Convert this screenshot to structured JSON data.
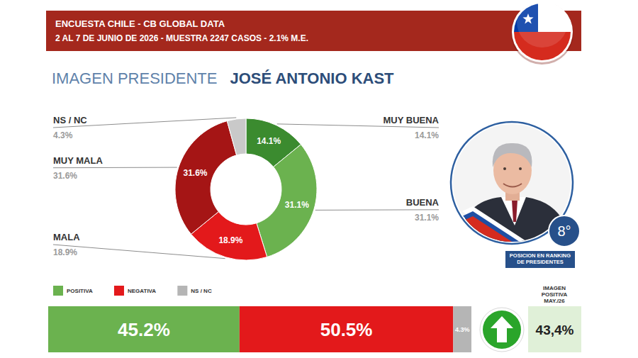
{
  "header": {
    "title": "ENCUESTA CHILE - CB GLOBAL DATA",
    "subtitle": "2 AL 7 DE JUNIO DE 2026 - MUESTRA 2247 CASOS - 2.1% M.E."
  },
  "heading": {
    "label": "IMAGEN PRESIDENTE",
    "name": "JOSÉ ANTONIO KAST"
  },
  "chart_data": [
    {
      "type": "pie",
      "categories": [
        "MUY BUENA",
        "BUENA",
        "MALA",
        "MUY MALA",
        "NS / NC"
      ],
      "values": [
        14.1,
        31.1,
        18.9,
        31.6,
        4.3
      ],
      "value_labels": [
        "14.1%",
        "31.1%",
        "18.9%",
        "31.6%",
        "4.3%"
      ],
      "colors": [
        "#3b8b2f",
        "#6bb24f",
        "#e3191b",
        "#a51515",
        "#c9c9c9"
      ],
      "data_labels": true
    },
    {
      "type": "bar",
      "orientation": "horizontal",
      "stacked": true,
      "series": [
        {
          "name": "POSITIVA",
          "color": "#6bb24f",
          "values": [
            45.2
          ],
          "value_labels": [
            "45.2%"
          ]
        },
        {
          "name": "NEGATIVA",
          "color": "#e3191b",
          "values": [
            50.5
          ],
          "value_labels": [
            "50.5%"
          ]
        },
        {
          "name": "NS / NC",
          "color": "#b5b5b5",
          "values": [
            4.3
          ],
          "value_labels": [
            "4.3%"
          ]
        }
      ],
      "xlim": [
        0,
        100
      ],
      "tick_labels": false,
      "legend": "top-left",
      "data_labels": true
    }
  ],
  "ranking": {
    "value": 8,
    "label": "8°",
    "caption": "POSICION EN RANKING DE PRESIDENTES"
  },
  "previous": {
    "title": "IMAGEN POSITIVA MAY./26",
    "value": 43.4,
    "label": "43,4%"
  }
}
